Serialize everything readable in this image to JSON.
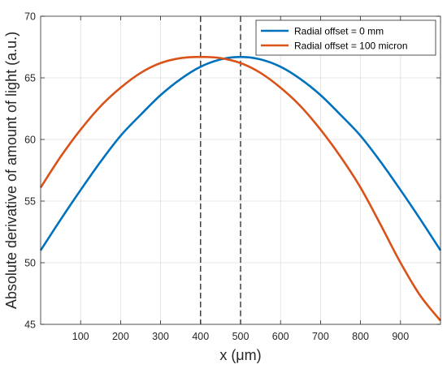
{
  "chart_data": {
    "type": "line",
    "xlabel": "x (μm)",
    "ylabel": "Absolute derivative of amount of light (a.u.)",
    "xlim": [
      0,
      1000
    ],
    "ylim": [
      45,
      70
    ],
    "x_ticks": [
      100,
      200,
      300,
      400,
      500,
      600,
      700,
      800,
      900
    ],
    "y_ticks": [
      45,
      50,
      55,
      60,
      65,
      70
    ],
    "grid": true,
    "box": true,
    "legend_position": "top-right",
    "series": [
      {
        "name": "Radial offset = 0 mm",
        "color": "#0072BD",
        "x": [
          0,
          50,
          100,
          150,
          200,
          250,
          300,
          350,
          400,
          450,
          500,
          550,
          600,
          650,
          700,
          750,
          800,
          850,
          900,
          950,
          1000
        ],
        "y": [
          51.0,
          53.5,
          55.9,
          58.2,
          60.3,
          62.0,
          63.6,
          64.9,
          65.9,
          66.5,
          66.7,
          66.5,
          65.9,
          64.9,
          63.6,
          62.0,
          60.3,
          58.2,
          55.9,
          53.5,
          51.0
        ]
      },
      {
        "name": "Radial offset = 100 micron",
        "color": "#D95319",
        "x": [
          0,
          50,
          100,
          150,
          200,
          250,
          300,
          350,
          400,
          450,
          500,
          550,
          600,
          650,
          700,
          750,
          800,
          850,
          900,
          950,
          1000
        ],
        "y": [
          56.1,
          58.6,
          60.8,
          62.7,
          64.2,
          65.4,
          66.2,
          66.6,
          66.7,
          66.6,
          66.2,
          65.4,
          64.2,
          62.7,
          60.8,
          58.6,
          56.1,
          53.1,
          50.0,
          47.3,
          45.3
        ]
      }
    ],
    "reference_lines": [
      {
        "axis": "x",
        "value": 400,
        "style": "dashed",
        "color": "#262626"
      },
      {
        "axis": "x",
        "value": 500,
        "style": "dashed",
        "color": "#262626"
      }
    ]
  }
}
